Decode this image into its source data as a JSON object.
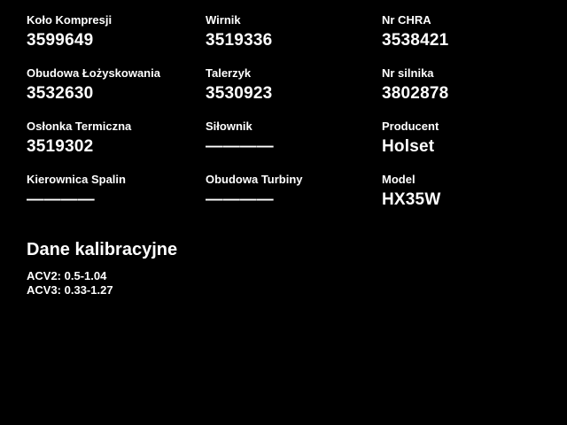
{
  "colors": {
    "background": "#000000",
    "text": "#ffffff"
  },
  "grid": {
    "cells": [
      {
        "label": "Koło Kompresji",
        "value": "3599649"
      },
      {
        "label": "Wirnik",
        "value": "3519336"
      },
      {
        "label": "Nr CHRA",
        "value": "3538421"
      },
      {
        "label": "Obudowa Łożyskowania",
        "value": "3532630"
      },
      {
        "label": "Talerzyk",
        "value": "3530923"
      },
      {
        "label": "Nr silnika",
        "value": "3802878"
      },
      {
        "label": "Osłonka Termiczna",
        "value": "3519302"
      },
      {
        "label": "Siłownik",
        "value": "————"
      },
      {
        "label": "Producent",
        "value": "Holset"
      },
      {
        "label": "Kierownica Spalin",
        "value": "————"
      },
      {
        "label": "Obudowa Turbiny",
        "value": "————"
      },
      {
        "label": "Model",
        "value": "HX35W"
      }
    ]
  },
  "calibration": {
    "heading": "Dane kalibracyjne",
    "lines": [
      "ACV2: 0.5-1.04",
      "ACV3: 0.33-1.27"
    ]
  }
}
